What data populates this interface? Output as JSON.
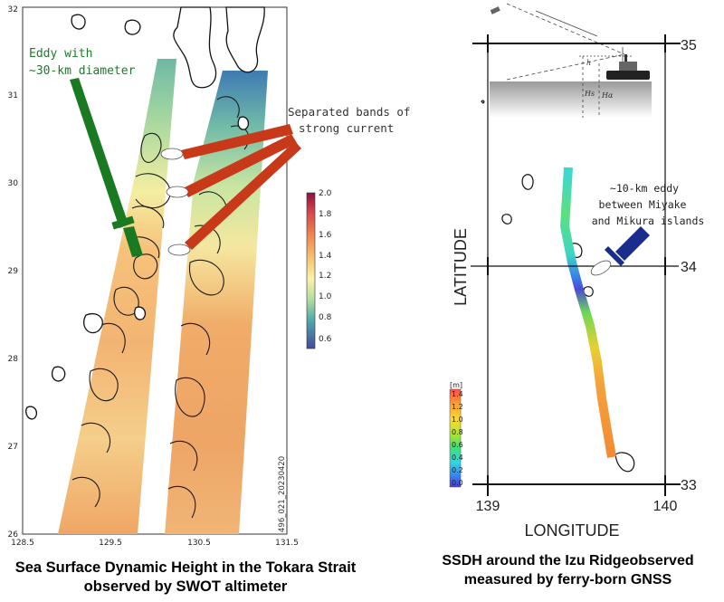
{
  "left_panel": {
    "x_ticks": [
      "128.5",
      "129.5",
      "130.5",
      "131.5"
    ],
    "y_ticks": [
      "26",
      "27",
      "28",
      "29",
      "30",
      "31",
      "32"
    ],
    "colorbar_ticks": [
      "2.0",
      "1.8",
      "1.6",
      "1.4",
      "1.2",
      "1.0",
      "0.8",
      "0.6"
    ],
    "pass_id": "496_021_20230420",
    "annotation_eddy": [
      "Eddy with",
      "~30-km diameter"
    ],
    "annotation_bands": [
      "Separated bands of",
      "strong current"
    ],
    "caption_lines": [
      "Sea Surface Dynamic Height in the Tokara Strait",
      "observed by SWOT altimeter"
    ]
  },
  "right_panel": {
    "lat_ticks": [
      "35",
      "34",
      "33"
    ],
    "lon_ticks": [
      "139",
      "140"
    ],
    "xlabel": "LONGITUDE",
    "ylabel": "LATITUDE",
    "ship_labels": [
      "h",
      "Hs",
      "Hα"
    ],
    "annotation": [
      "~10-km eddy",
      "between Miyake",
      "and Mikura islands"
    ],
    "colorbar_unit": "[m]",
    "colorbar_ticks": [
      "1.4",
      "1.2",
      "1.0",
      "0.8",
      "0.6",
      "0.4",
      "0.2",
      "0.0"
    ],
    "caption_lines": [
      "SSDH around the Izu Ridgeobserved",
      "measured by ferry-born GNSS"
    ]
  },
  "colors": {
    "eddy_arrow": "#1a7a22",
    "band_arrows": "#c8391a",
    "izu_arrow": "#1b2d8c"
  }
}
